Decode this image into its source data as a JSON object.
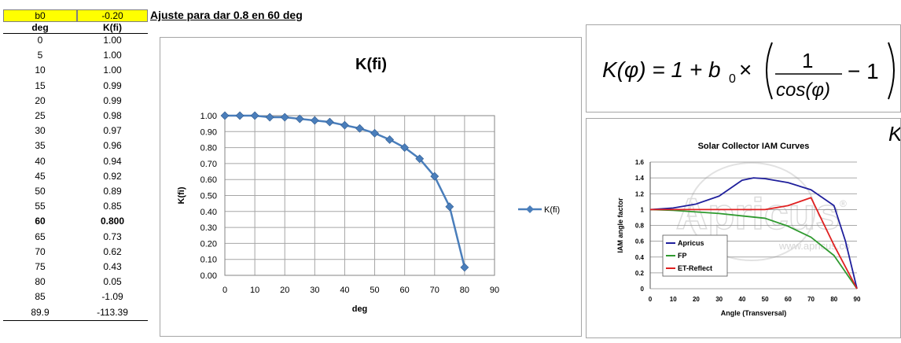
{
  "sheet": {
    "b0_label": "b0",
    "b0_value": "-0.20",
    "note": "Ajuste para dar 0.8 en 60 deg",
    "col_deg": "deg",
    "col_k": "K(fi)",
    "rows": [
      {
        "deg": "0",
        "k": "1.00"
      },
      {
        "deg": "5",
        "k": "1.00"
      },
      {
        "deg": "10",
        "k": "1.00"
      },
      {
        "deg": "15",
        "k": "0.99"
      },
      {
        "deg": "20",
        "k": "0.99"
      },
      {
        "deg": "25",
        "k": "0.98"
      },
      {
        "deg": "30",
        "k": "0.97"
      },
      {
        "deg": "35",
        "k": "0.96"
      },
      {
        "deg": "40",
        "k": "0.94"
      },
      {
        "deg": "45",
        "k": "0.92"
      },
      {
        "deg": "50",
        "k": "0.89"
      },
      {
        "deg": "55",
        "k": "0.85"
      },
      {
        "deg": "60",
        "k": "0.800",
        "bold": true
      },
      {
        "deg": "65",
        "k": "0.73"
      },
      {
        "deg": "70",
        "k": "0.62"
      },
      {
        "deg": "75",
        "k": "0.43"
      },
      {
        "deg": "80",
        "k": "0.05"
      },
      {
        "deg": "85",
        "k": "-1.09"
      },
      {
        "deg": "89.9",
        "k": "-113.39"
      }
    ]
  },
  "formula": {
    "lhs": "K(φ) = 1 + b",
    "sub": "0",
    "times": "×",
    "num": "1",
    "den": "cos(φ)",
    "minus_one": "− 1"
  },
  "iam_image": {
    "corner_letter": "K",
    "watermark": "Apricus",
    "watermark_url": "www.apricus.co",
    "trademark": "®"
  },
  "chart_data": [
    {
      "type": "line",
      "title": "K(fi)",
      "xlabel": "deg",
      "ylabel": "K(fi)",
      "xlim": [
        0,
        90
      ],
      "ylim": [
        0,
        1
      ],
      "xticks": [
        "0",
        "10",
        "20",
        "30",
        "40",
        "50",
        "60",
        "70",
        "80",
        "90"
      ],
      "yticks": [
        "0.00",
        "0.10",
        "0.20",
        "0.30",
        "0.40",
        "0.50",
        "0.60",
        "0.70",
        "0.80",
        "0.90",
        "1.00"
      ],
      "grid": true,
      "legend_position": "right",
      "color": "#4a7ebb",
      "series": [
        {
          "name": "K(fi)",
          "x": [
            0,
            5,
            10,
            15,
            20,
            25,
            30,
            35,
            40,
            45,
            50,
            55,
            60,
            65,
            70,
            75,
            80
          ],
          "y": [
            1.0,
            1.0,
            1.0,
            0.99,
            0.99,
            0.98,
            0.97,
            0.96,
            0.94,
            0.92,
            0.89,
            0.85,
            0.8,
            0.73,
            0.62,
            0.43,
            0.05
          ]
        }
      ]
    },
    {
      "type": "line",
      "title": "Solar Collector IAM Curves",
      "xlabel": "Angle (Transversal)",
      "ylabel": "IAM angle factor",
      "xlim": [
        0,
        90
      ],
      "ylim": [
        0,
        1.6
      ],
      "xticks": [
        "0",
        "10",
        "20",
        "30",
        "40",
        "50",
        "60",
        "70",
        "80",
        "90"
      ],
      "yticks": [
        "0",
        "0.2",
        "0.4",
        "0.6",
        "0.8",
        "1",
        "1.2",
        "1.4",
        "1.6"
      ],
      "grid": true,
      "legend_position": "bottom-left",
      "series": [
        {
          "name": "Apricus",
          "color": "#1f1f9c",
          "x": [
            0,
            10,
            20,
            30,
            40,
            45,
            50,
            60,
            70,
            80,
            85,
            90
          ],
          "y": [
            1.0,
            1.02,
            1.07,
            1.17,
            1.37,
            1.4,
            1.39,
            1.34,
            1.25,
            1.05,
            0.6,
            0.0
          ]
        },
        {
          "name": "FP",
          "color": "#2f9a2f",
          "x": [
            0,
            10,
            20,
            30,
            40,
            50,
            60,
            70,
            80,
            90
          ],
          "y": [
            1.0,
            0.99,
            0.97,
            0.95,
            0.92,
            0.89,
            0.79,
            0.65,
            0.42,
            0.0
          ]
        },
        {
          "name": "ET-Reflect",
          "color": "#e02020",
          "x": [
            0,
            10,
            20,
            30,
            40,
            50,
            60,
            70,
            80,
            90
          ],
          "y": [
            1.0,
            1.0,
            1.0,
            1.0,
            1.0,
            1.0,
            1.05,
            1.15,
            0.55,
            0.0
          ]
        }
      ]
    }
  ]
}
